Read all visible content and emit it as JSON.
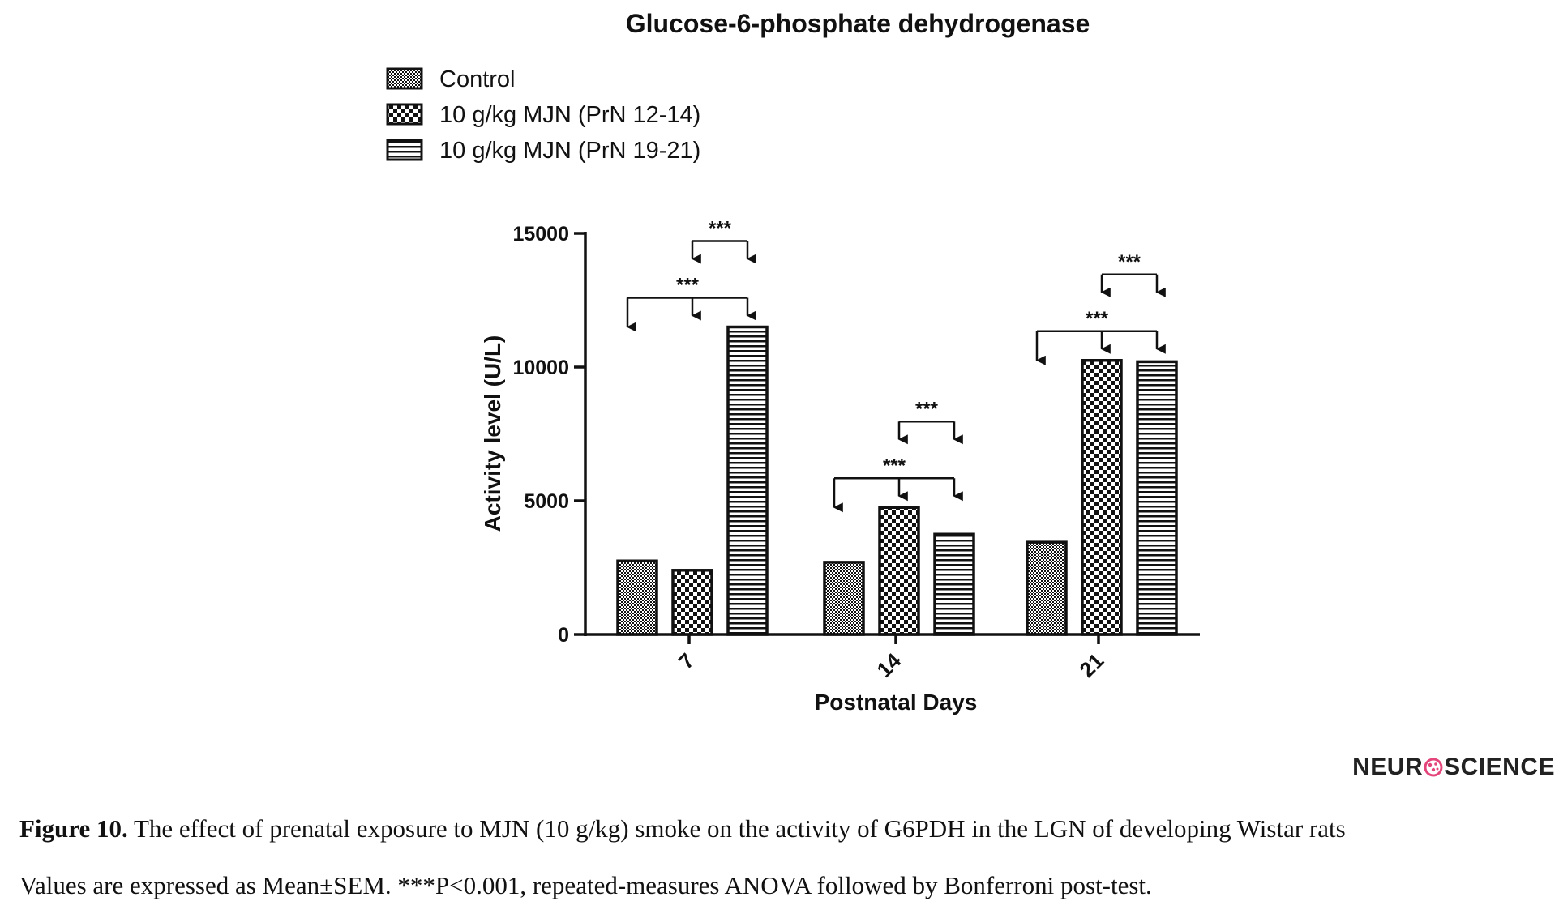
{
  "chart_data": {
    "type": "bar",
    "title": "Glucose-6-phosphate dehydrogenase",
    "xlabel": "Postnatal Days",
    "ylabel": "Activity level (U/L)",
    "ylim": [
      0,
      15000
    ],
    "yticks": [
      "0",
      "5000",
      "10000",
      "15000"
    ],
    "categories": [
      "7",
      "14",
      "21"
    ],
    "legend_position": "top-left",
    "series": [
      {
        "name": "Control",
        "values": [
          2750,
          2700,
          3450
        ]
      },
      {
        "name": "10 g/kg MJN (PrN 12-14)",
        "values": [
          2400,
          4750,
          10250
        ]
      },
      {
        "name": "10 g/kg MJN (PrN 19-21)",
        "values": [
          11500,
          3750,
          10200
        ]
      }
    ],
    "significance": [
      {
        "category": "7",
        "label": "***",
        "from": 0,
        "to": [
          1,
          2
        ]
      },
      {
        "category": "7",
        "label": "***",
        "from": 1,
        "to": [
          2
        ]
      },
      {
        "category": "14",
        "label": "***",
        "from": 0,
        "to": [
          1,
          2
        ]
      },
      {
        "category": "14",
        "label": "***",
        "from": 1,
        "to": [
          2
        ]
      },
      {
        "category": "21",
        "label": "***",
        "from": 0,
        "to": [
          1,
          2
        ]
      },
      {
        "category": "21",
        "label": "***",
        "from": 1,
        "to": [
          2
        ]
      }
    ]
  },
  "logo": {
    "left": "NEUR",
    "right": "SCIENCE",
    "icon": "brain-o-icon"
  },
  "caption": {
    "label": "Figure 10.",
    "line1": "The effect of prenatal exposure to MJN (10 g/kg) smoke on the activity of G6PDH in the LGN of developing Wistar rats",
    "line2": "Values are expressed as Mean±SEM. ***P<0.001, repeated-measures ANOVA followed by Bonferroni post-test."
  }
}
